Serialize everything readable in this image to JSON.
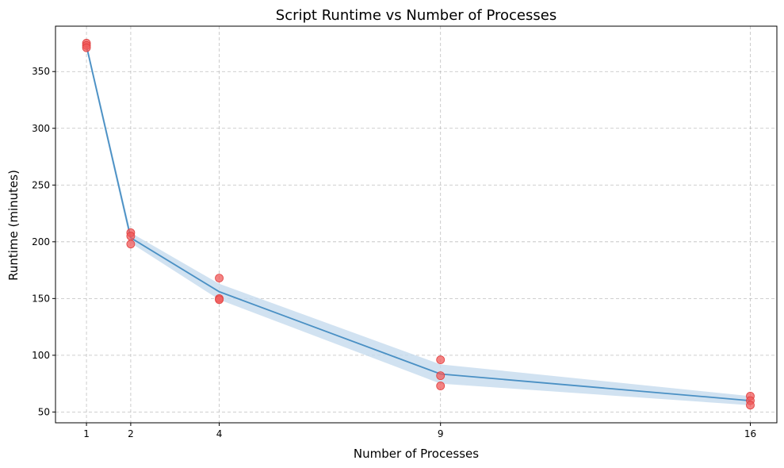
{
  "chart_data": {
    "type": "line",
    "title": "Script Runtime vs Number of Processes",
    "xlabel": "Number of Processes",
    "ylabel": "Runtime (minutes)",
    "x_ticks": [
      1,
      2,
      4,
      9,
      16
    ],
    "y_ticks": [
      50,
      100,
      150,
      200,
      250,
      300,
      350
    ],
    "xlim": [
      0.3,
      16.6
    ],
    "ylim": [
      40.5,
      390
    ],
    "grid": true,
    "series": [
      {
        "x": [
          1,
          2,
          4,
          9,
          16
        ],
        "values": [
          372.5,
          203.5,
          156,
          83.5,
          60
        ],
        "band_upper": [
          376,
          208,
          163,
          92,
          64
        ],
        "band_lower": [
          369,
          199,
          149,
          75,
          56
        ],
        "color": "#4a90c4",
        "band_color": "#c5dbee"
      }
    ],
    "points": {
      "color": "#f05a5a",
      "x": [
        1,
        1,
        1,
        2,
        2,
        2,
        4,
        4,
        4,
        9,
        9,
        9,
        16,
        16,
        16
      ],
      "y": [
        375,
        373,
        371,
        208,
        205,
        198,
        168,
        150,
        149,
        96,
        82,
        73,
        64,
        60,
        56
      ]
    }
  }
}
